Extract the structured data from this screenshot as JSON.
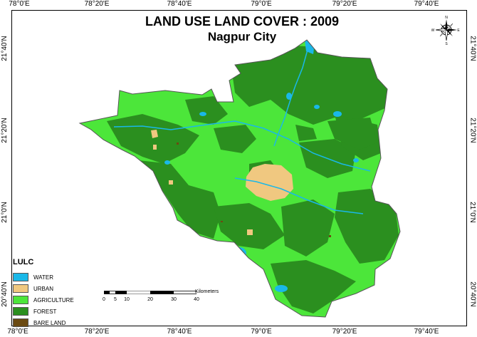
{
  "title": "LAND USE LAND COVER : 2009",
  "subtitle": "Nagpur City",
  "graticule": {
    "longitudes": [
      "78°0'E",
      "78°20'E",
      "78°40'E",
      "79°0'E",
      "79°20'E",
      "79°40'E"
    ],
    "latitudes": [
      "21°40'N",
      "21°20'N",
      "21°0'N",
      "20°40'N"
    ]
  },
  "legend": {
    "title": "LULC",
    "items": [
      {
        "label": "WATER",
        "color": "#1ab8e8"
      },
      {
        "label": "URBAN",
        "color": "#f0c880"
      },
      {
        "label": "AGRICULTURE",
        "color": "#4ce63a"
      },
      {
        "label": "FOREST",
        "color": "#2b8f1f"
      },
      {
        "label": "BARE LAND",
        "color": "#6b4a12"
      }
    ]
  },
  "scale_bar": {
    "unit": "Kilometers",
    "labels": [
      "0",
      "5",
      "10",
      "20",
      "30",
      "40"
    ]
  },
  "compass": {
    "north": "N",
    "south": "S",
    "east": "E",
    "west": "W"
  },
  "colors": {
    "water": "#1ab8e8",
    "urban": "#f0c880",
    "agriculture": "#4ce63a",
    "forest": "#2b8f1f",
    "bare_land": "#6b4a12"
  }
}
